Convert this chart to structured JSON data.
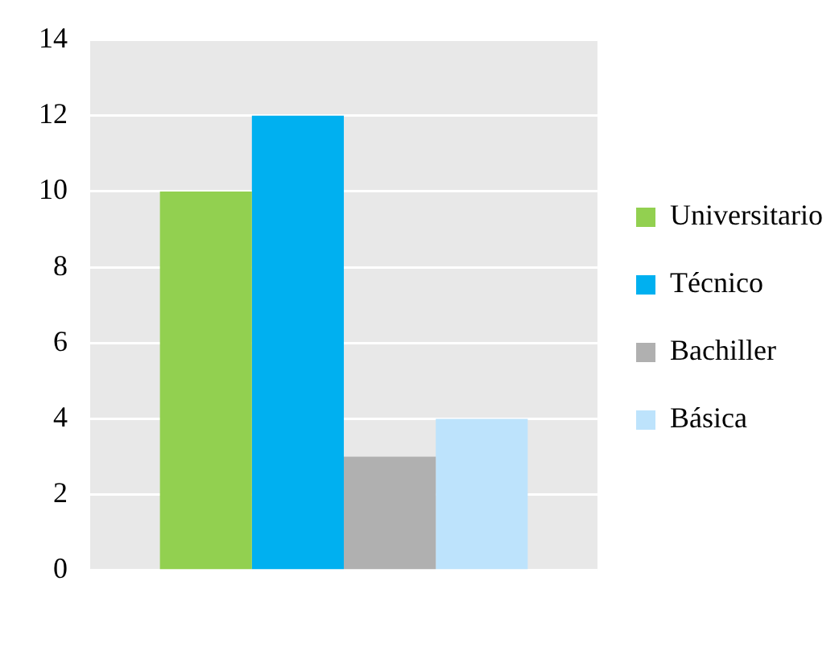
{
  "chart_data": {
    "type": "bar",
    "categories": [
      null
    ],
    "series": [
      {
        "name": "Universitario",
        "color": "#92d050",
        "values": [
          10
        ]
      },
      {
        "name": "Técnico",
        "color": "#00b0f0",
        "values": [
          12
        ]
      },
      {
        "name": "Bachiller",
        "color": "#b0b0b0",
        "values": [
          3
        ]
      },
      {
        "name": "Básica",
        "color": "#bde3fc",
        "values": [
          4
        ]
      }
    ],
    "ylim": [
      0,
      14
    ],
    "yticks": [
      0,
      2,
      4,
      6,
      8,
      10,
      12,
      14
    ],
    "grid": "y",
    "legend": "right"
  }
}
